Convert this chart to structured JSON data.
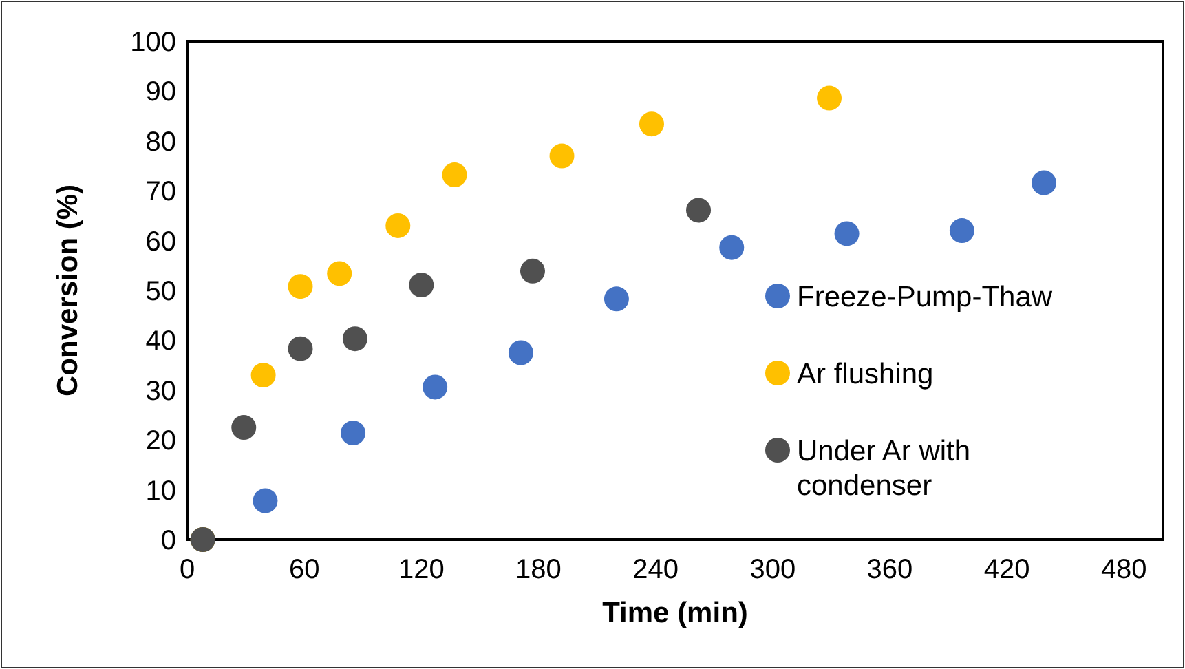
{
  "chart_data": {
    "type": "scatter",
    "xlabel": "Time (min)",
    "ylabel": "Conversion (%)",
    "xlim": [
      0,
      500
    ],
    "xticks": [
      0,
      60,
      120,
      180,
      240,
      300,
      360,
      420,
      480
    ],
    "ylim": [
      0,
      100
    ],
    "yticks": [
      0,
      10,
      20,
      30,
      40,
      50,
      60,
      70,
      80,
      90,
      100
    ],
    "grid": false,
    "legend": "right",
    "marker": "circle",
    "series": [
      {
        "name": "Freeze-Pump-Thaw",
        "color": "#4472c4",
        "x": [
          8,
          40,
          85,
          127,
          171,
          220,
          279,
          338,
          397,
          439
        ],
        "values": [
          0,
          7.8,
          21.4,
          30.6,
          37.5,
          48.3,
          58.6,
          61.4,
          62,
          71.6
        ]
      },
      {
        "name": "Ar flushing",
        "color": "#ffc000",
        "x": [
          8,
          39,
          58,
          78,
          108,
          137,
          192,
          238,
          329
        ],
        "values": [
          0,
          33,
          50.8,
          53.4,
          63,
          73.2,
          77,
          83.4,
          88.6
        ]
      },
      {
        "name": "Under Ar with condenser",
        "color": "#505050",
        "x": [
          8,
          29,
          58,
          86,
          120,
          177,
          262
        ],
        "values": [
          0,
          22.5,
          38.3,
          40.3,
          51.1,
          53.9,
          66.1
        ]
      }
    ]
  }
}
